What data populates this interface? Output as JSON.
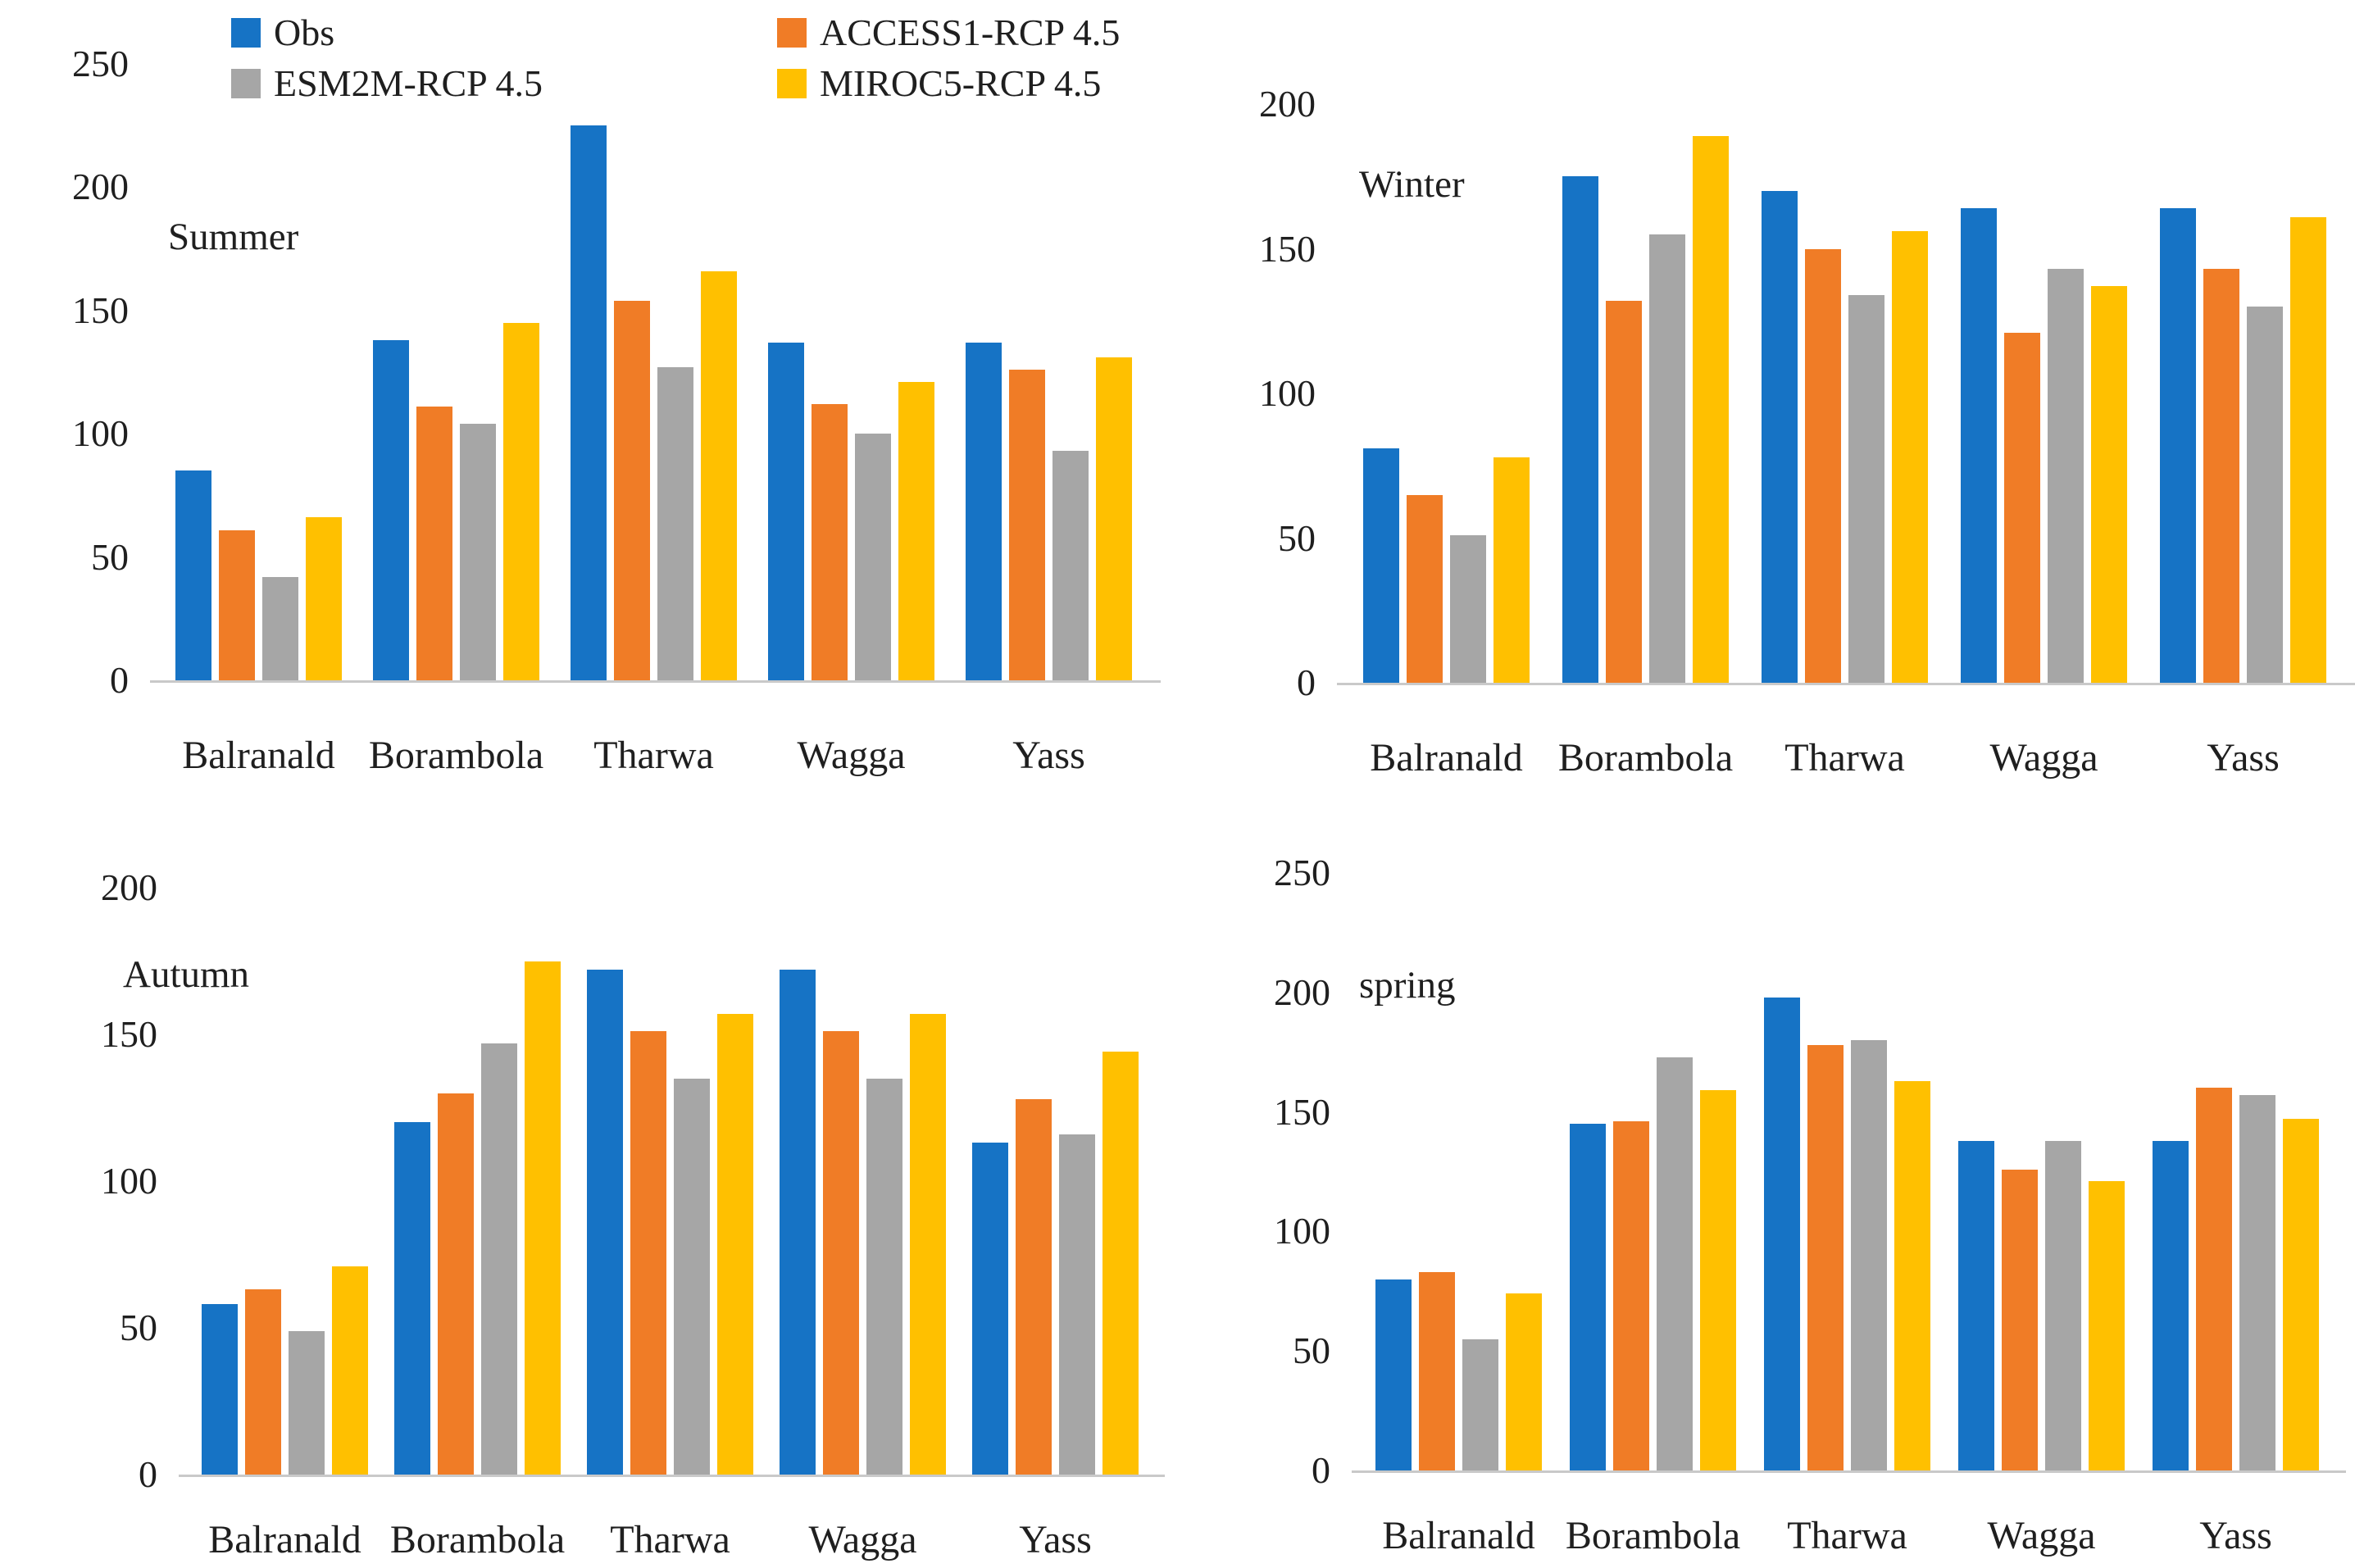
{
  "figure": {
    "background": "#ffffff",
    "text_color": "#1f1f1f",
    "axis_line_color": "#c9c9c9"
  },
  "legend": {
    "position": "top",
    "items": [
      {
        "label": "Obs",
        "color": "#1673C5"
      },
      {
        "label": "ACCESS1-RCP 4.5",
        "color": "#F07C26"
      },
      {
        "label": "ESM2M-RCP 4.5",
        "color": "#A6A6A6"
      },
      {
        "label": "MIROC5-RCP 4.5",
        "color": "#FFC000"
      }
    ]
  },
  "chart_data": [
    {
      "type": "bar",
      "title": "Summer",
      "categories": [
        "Balranald",
        "Borambola",
        "Tharwa",
        "Wagga",
        "Yass"
      ],
      "series": [
        {
          "name": "Obs",
          "color": "#1673C5",
          "values": [
            85,
            138,
            225,
            137,
            137
          ]
        },
        {
          "name": "ACCESS1-RCP 4.5",
          "color": "#F07C26",
          "values": [
            61,
            111,
            154,
            112,
            126
          ]
        },
        {
          "name": "ESM2M-RCP 4.5",
          "color": "#A6A6A6",
          "values": [
            42,
            104,
            127,
            100,
            93
          ]
        },
        {
          "name": "MIROC5-RCP 4.5",
          "color": "#FFC000",
          "values": [
            66,
            145,
            166,
            121,
            131
          ]
        }
      ],
      "xlabel": "",
      "ylabel": "",
      "ylim": [
        0,
        250
      ],
      "yticks": [
        0,
        50,
        100,
        150,
        200,
        250
      ],
      "grid": false,
      "legend_position": "top"
    },
    {
      "type": "bar",
      "title": "Winter",
      "categories": [
        "Balranald",
        "Borambola",
        "Tharwa",
        "Wagga",
        "Yass"
      ],
      "series": [
        {
          "name": "Obs",
          "color": "#1673C5",
          "values": [
            81,
            175,
            170,
            164,
            164
          ]
        },
        {
          "name": "ACCESS1-RCP 4.5",
          "color": "#F07C26",
          "values": [
            65,
            132,
            150,
            121,
            143
          ]
        },
        {
          "name": "ESM2M-RCP 4.5",
          "color": "#A6A6A6",
          "values": [
            51,
            155,
            134,
            143,
            130
          ]
        },
        {
          "name": "MIROC5-RCP 4.5",
          "color": "#FFC000",
          "values": [
            78,
            189,
            156,
            137,
            161
          ]
        }
      ],
      "xlabel": "",
      "ylabel": "",
      "ylim": [
        0,
        200
      ],
      "yticks": [
        0,
        50,
        100,
        150,
        200
      ],
      "grid": false,
      "legend_position": "none"
    },
    {
      "type": "bar",
      "title": "Autumn",
      "categories": [
        "Balranald",
        "Borambola",
        "Tharwa",
        "Wagga",
        "Yass"
      ],
      "series": [
        {
          "name": "Obs",
          "color": "#1673C5",
          "values": [
            58,
            120,
            172,
            172,
            113
          ]
        },
        {
          "name": "ACCESS1-RCP 4.5",
          "color": "#F07C26",
          "values": [
            63,
            130,
            151,
            151,
            128
          ]
        },
        {
          "name": "ESM2M-RCP 4.5",
          "color": "#A6A6A6",
          "values": [
            49,
            147,
            135,
            135,
            116
          ]
        },
        {
          "name": "MIROC5-RCP 4.5",
          "color": "#FFC000",
          "values": [
            71,
            175,
            157,
            157,
            144
          ]
        }
      ],
      "xlabel": "",
      "ylabel": "",
      "ylim": [
        0,
        200
      ],
      "yticks": [
        0,
        50,
        100,
        150,
        200
      ],
      "grid": false,
      "legend_position": "none"
    },
    {
      "type": "bar",
      "title": "spring",
      "categories": [
        "Balranald",
        "Borambola",
        "Tharwa",
        "Wagga",
        "Yass"
      ],
      "series": [
        {
          "name": "Obs",
          "color": "#1673C5",
          "values": [
            80,
            145,
            198,
            138,
            138
          ]
        },
        {
          "name": "ACCESS1-RCP 4.5",
          "color": "#F07C26",
          "values": [
            83,
            146,
            178,
            126,
            160
          ]
        },
        {
          "name": "ESM2M-RCP 4.5",
          "color": "#A6A6A6",
          "values": [
            55,
            173,
            180,
            138,
            157
          ]
        },
        {
          "name": "MIROC5-RCP 4.5",
          "color": "#FFC000",
          "values": [
            74,
            159,
            163,
            121,
            147
          ]
        }
      ],
      "xlabel": "",
      "ylabel": "",
      "ylim": [
        0,
        250
      ],
      "yticks": [
        0,
        50,
        100,
        150,
        200,
        250
      ],
      "grid": false,
      "legend_position": "none"
    }
  ]
}
